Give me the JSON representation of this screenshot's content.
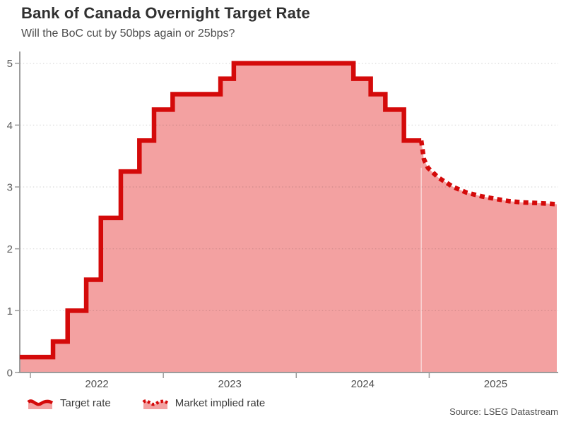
{
  "header": {
    "title": "Bank of Canada Overnight Target Rate",
    "subtitle": "Will the BoC cut by 50bps again or 25bps?"
  },
  "legend": {
    "items": [
      {
        "label": "Target rate",
        "style": "solid"
      },
      {
        "label": "Market implied rate",
        "style": "dotted"
      }
    ]
  },
  "source": "Source: LSEG Datastream",
  "colors": {
    "line_red": "#d40a0a",
    "fill_pink": "#f3a1a1",
    "axis_gray": "#9c9c9c",
    "grid_gray": "rgba(0,0,0,0.15)",
    "seam_white": "rgba(255,255,255,0.6)"
  },
  "chart_data": {
    "type": "line",
    "title": "Bank of Canada Overnight Target Rate",
    "subtitle": "Will the BoC cut by 50bps again or 25bps?",
    "xlabel": "",
    "ylabel": "",
    "y_unit": "percent",
    "x_ticks": [
      2022,
      2023,
      2024,
      2025
    ],
    "y_ticks": [
      0,
      1,
      2,
      3,
      4,
      5
    ],
    "xlim": [
      2021.92,
      2025.96
    ],
    "ylim": [
      0,
      5.19
    ],
    "grid": "dotted-horizontal",
    "legend_position": "bottom-left",
    "series": [
      {
        "name": "Target rate",
        "type": "step",
        "line": "solid",
        "points": [
          [
            2021.92,
            0.25
          ],
          [
            2022.17,
            0.5
          ],
          [
            2022.28,
            1.0
          ],
          [
            2022.42,
            1.5
          ],
          [
            2022.53,
            2.5
          ],
          [
            2022.68,
            3.25
          ],
          [
            2022.82,
            3.75
          ],
          [
            2022.93,
            4.25
          ],
          [
            2023.07,
            4.5
          ],
          [
            2023.43,
            4.75
          ],
          [
            2023.53,
            5.0
          ],
          [
            2024.43,
            4.75
          ],
          [
            2024.56,
            4.5
          ],
          [
            2024.67,
            4.25
          ],
          [
            2024.81,
            3.75
          ],
          [
            2024.94,
            3.75
          ]
        ]
      },
      {
        "name": "Market implied rate",
        "type": "line",
        "line": "dotted",
        "points": [
          [
            2024.94,
            3.75
          ],
          [
            2024.96,
            3.45
          ],
          [
            2024.99,
            3.31
          ],
          [
            2025.07,
            3.15
          ],
          [
            2025.18,
            3.0
          ],
          [
            2025.28,
            2.91
          ],
          [
            2025.39,
            2.85
          ],
          [
            2025.49,
            2.81
          ],
          [
            2025.6,
            2.77
          ],
          [
            2025.7,
            2.75
          ],
          [
            2025.81,
            2.74
          ],
          [
            2025.9,
            2.73
          ],
          [
            2025.96,
            2.72
          ]
        ]
      }
    ]
  }
}
